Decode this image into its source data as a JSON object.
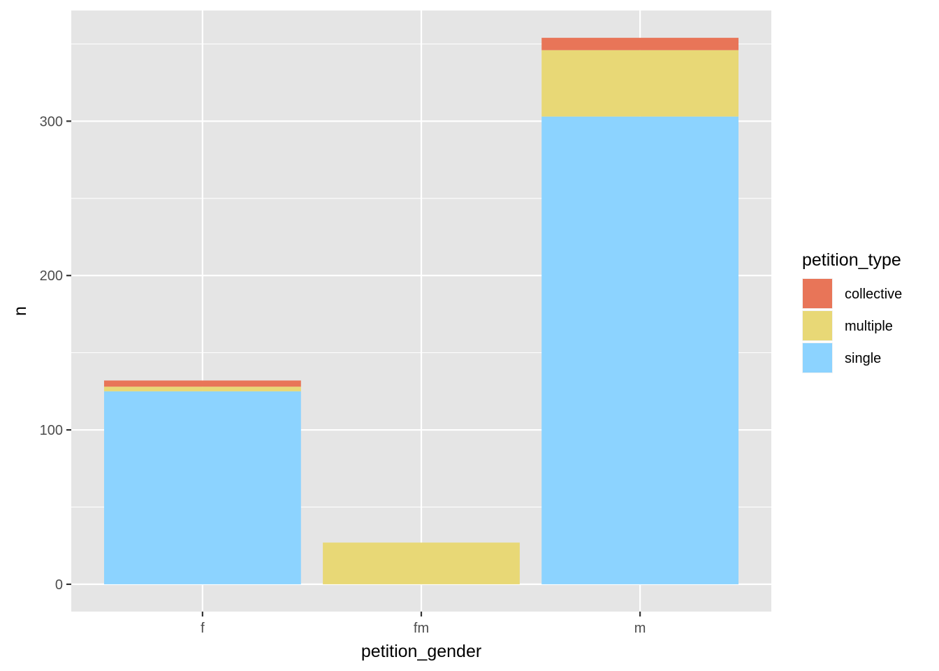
{
  "chart_data": {
    "type": "bar",
    "stacked": true,
    "categories": [
      "f",
      "fm",
      "m"
    ],
    "series": [
      {
        "name": "single",
        "values": [
          125,
          0,
          303
        ],
        "color": "#8CD3FF"
      },
      {
        "name": "multiple",
        "values": [
          3,
          27,
          43
        ],
        "color": "#E8D876"
      },
      {
        "name": "collective",
        "values": [
          4,
          0,
          8
        ],
        "color": "#E87558"
      }
    ],
    "stack_order_top_to_bottom": [
      "collective",
      "multiple",
      "single"
    ],
    "xlabel": "petition_gender",
    "ylabel": "n",
    "ylim": [
      -17.7,
      371.7
    ],
    "yticks": [
      0,
      100,
      200,
      300
    ],
    "ytick_labels": [
      "0",
      "100",
      "200",
      "300"
    ],
    "grid": true,
    "legend": {
      "title": "petition_type",
      "position": "right",
      "entries": [
        "collective",
        "multiple",
        "single"
      ]
    },
    "panel_background": "#E5E5E5",
    "grid_color": "#FFFFFF"
  }
}
